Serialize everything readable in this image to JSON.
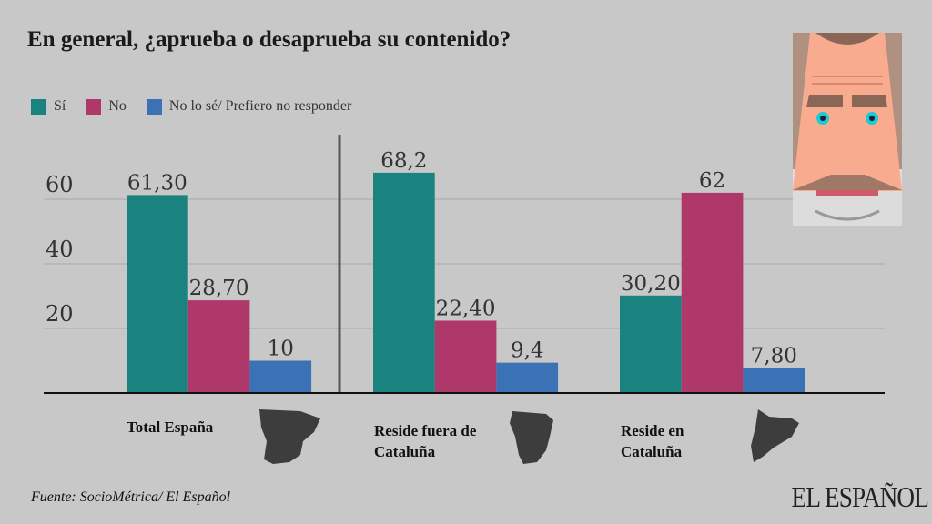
{
  "chart_data": {
    "type": "bar",
    "title": "En general, ¿aprueba o desaprueba su contenido?",
    "categories": [
      "Total España",
      "Reside fuera de Cataluña",
      "Reside en Cataluña"
    ],
    "series": [
      {
        "name": "Sí",
        "color": "#1a8380",
        "values": [
          61.3,
          68.2,
          30.2
        ],
        "labels": [
          "61,30",
          "68,2",
          "30,20"
        ]
      },
      {
        "name": "No",
        "color": "#ad3869",
        "values": [
          28.7,
          22.4,
          62
        ],
        "labels": [
          "28,70",
          "22,40",
          "62"
        ]
      },
      {
        "name": "No lo sé/ Prefiero no responder",
        "color": "#3a72b5",
        "values": [
          10,
          9.4,
          7.8
        ],
        "labels": [
          "10",
          "9,4",
          "7,80"
        ]
      }
    ],
    "yticks": [
      "20",
      "40",
      "60"
    ],
    "ylim": [
      0,
      80
    ],
    "grid": true,
    "legend": "top-left",
    "xlabel": "",
    "ylabel": ""
  },
  "source": "Fuente: SocioMétrica/ El Español",
  "logo": "EL ESPAÑOL",
  "icons": [
    "spain-map-icon",
    "spain-map-icon",
    "catalonia-map-icon",
    "face-illustration"
  ]
}
